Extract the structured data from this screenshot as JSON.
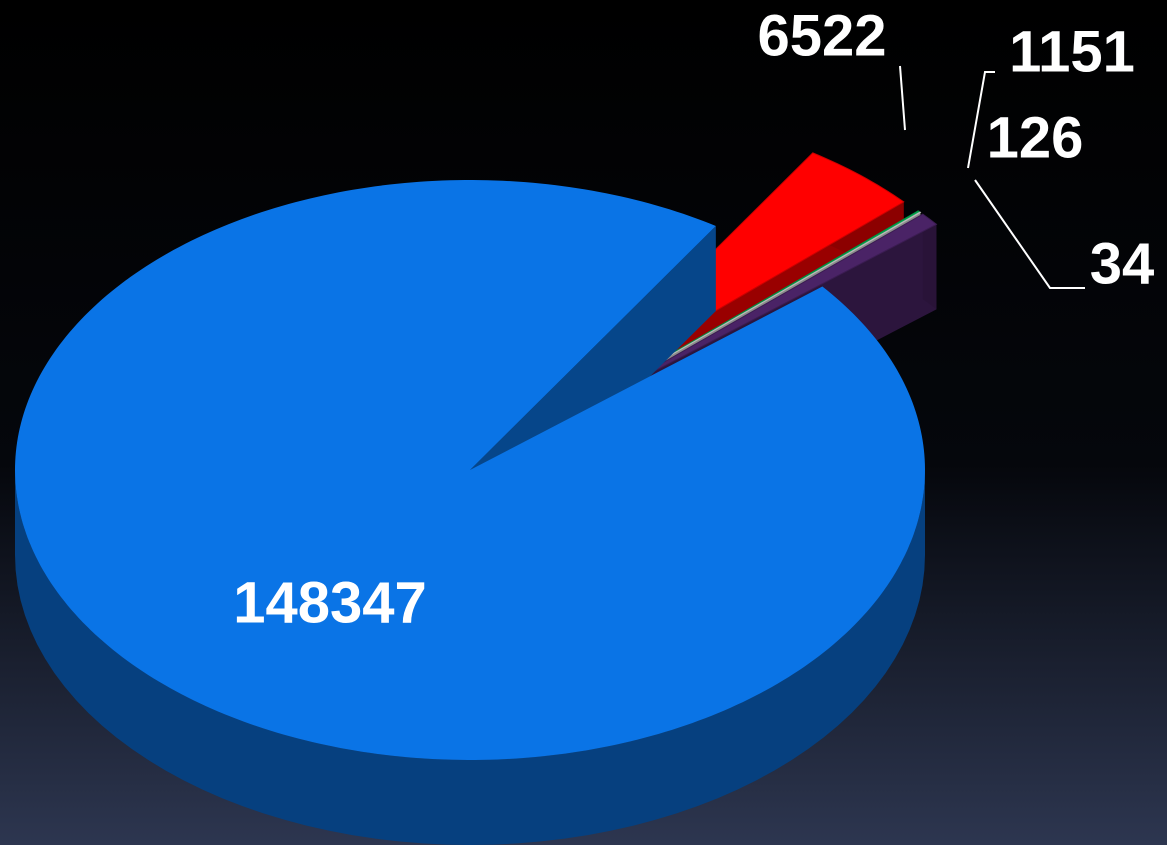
{
  "chart_data": {
    "type": "pie",
    "values": [
      148347,
      6522,
      126,
      34,
      1151
    ],
    "colors": [
      "#0a74e6",
      "#ff0000",
      "#00b050",
      "#e8e8e8",
      "#4a2366"
    ]
  }
}
